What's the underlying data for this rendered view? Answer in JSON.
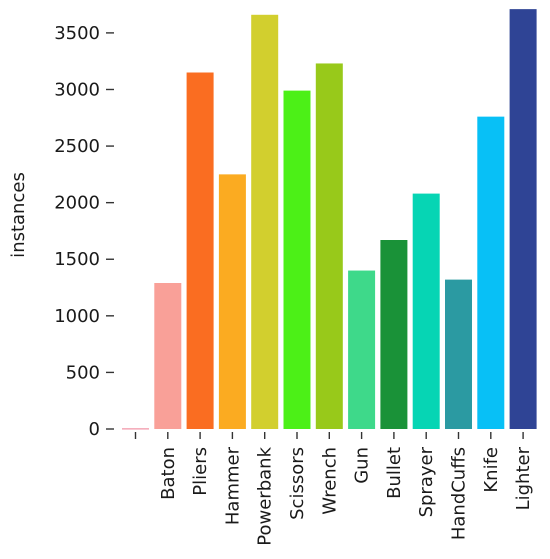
{
  "chart_data": {
    "type": "bar",
    "title": "",
    "xlabel": "",
    "ylabel": "instances",
    "ylim": [
      0,
      3720
    ],
    "grid": false,
    "legend": false,
    "yticks": [
      0,
      500,
      1000,
      1500,
      2000,
      2500,
      3000,
      3500
    ],
    "categories": [
      "",
      "Baton",
      "Pliers",
      "Hammer",
      "Powerbank",
      "Scissors",
      "Wrench",
      "Gun",
      "Bullet",
      "Sprayer",
      "HandCuffs",
      "Knife",
      "Lighter"
    ],
    "values": [
      8,
      1290,
      3150,
      2250,
      3660,
      2990,
      3230,
      1400,
      1670,
      2080,
      1320,
      2760,
      3710
    ],
    "colors": [
      "#f4a7b6",
      "#f9a098",
      "#fa6d21",
      "#fbab21",
      "#d2cf2e",
      "#4cf017",
      "#98c91a",
      "#3ed98a",
      "#1a9238",
      "#06d5b4",
      "#2b9aa2",
      "#08c0f6",
      "#2f4495"
    ]
  }
}
